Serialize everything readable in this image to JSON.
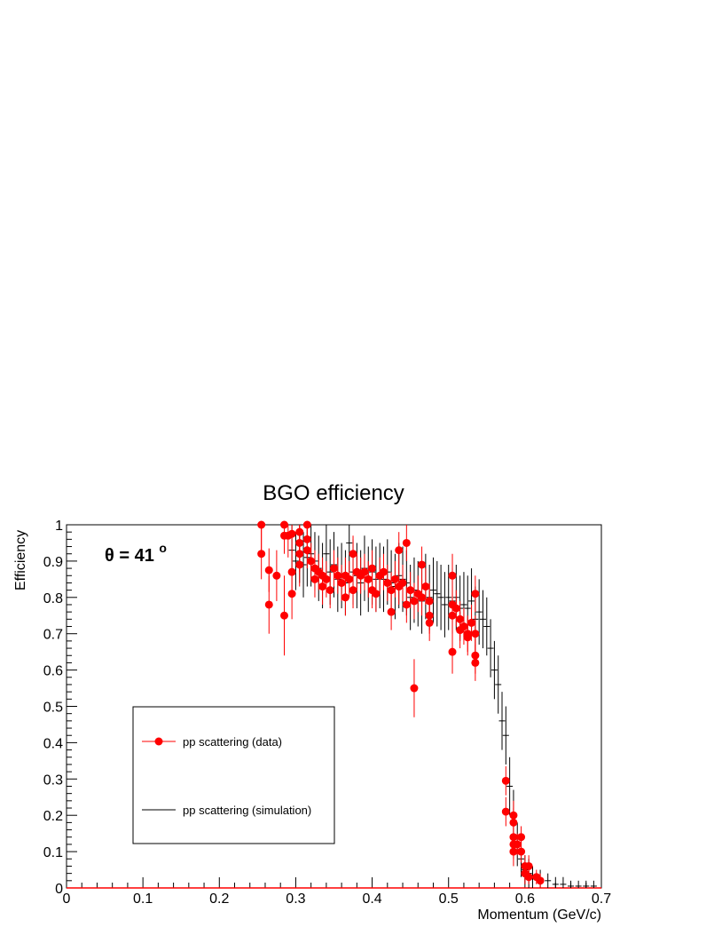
{
  "chart_data": {
    "type": "scatter",
    "title": "BGO efficiency",
    "xlabel": "Momentum (GeV/c)",
    "ylabel": "Efficiency",
    "xlim": [
      0,
      0.7
    ],
    "ylim": [
      0,
      1
    ],
    "x_ticks": [
      "0",
      "0.1",
      "0.2",
      "0.3",
      "0.4",
      "0.5",
      "0.6",
      "0.7"
    ],
    "y_ticks": [
      "0",
      "0.1",
      "0.2",
      "0.3",
      "0.4",
      "0.5",
      "0.6",
      "0.7",
      "0.8",
      "0.9",
      "1"
    ],
    "annotation": {
      "symbol": "θ",
      "text": " = 41 ",
      "superscript": "o"
    },
    "grid": false,
    "legend_placement": "lower-left",
    "series": [
      {
        "name": "pp scattering (data)",
        "color": "#ff0000",
        "marker": "circle",
        "points": [
          [
            0.255,
            1.0,
            0.08
          ],
          [
            0.255,
            0.92,
            0.07
          ],
          [
            0.265,
            0.875,
            0.06
          ],
          [
            0.265,
            0.78,
            0.08
          ],
          [
            0.275,
            0.86,
            0.07
          ],
          [
            0.285,
            1.0,
            0.06
          ],
          [
            0.285,
            0.97,
            0.05
          ],
          [
            0.285,
            0.75,
            0.11
          ],
          [
            0.29,
            0.97,
            0.06
          ],
          [
            0.295,
            0.975,
            0.05
          ],
          [
            0.295,
            0.87,
            0.06
          ],
          [
            0.295,
            0.81,
            0.07
          ],
          [
            0.305,
            0.98,
            0.05
          ],
          [
            0.305,
            0.95,
            0.05
          ],
          [
            0.305,
            0.92,
            0.05
          ],
          [
            0.305,
            0.89,
            0.06
          ],
          [
            0.315,
            1.0,
            0.05
          ],
          [
            0.315,
            0.96,
            0.05
          ],
          [
            0.315,
            0.93,
            0.05
          ],
          [
            0.32,
            0.9,
            0.05
          ],
          [
            0.325,
            0.88,
            0.05
          ],
          [
            0.325,
            0.85,
            0.05
          ],
          [
            0.33,
            0.87,
            0.05
          ],
          [
            0.335,
            0.86,
            0.05
          ],
          [
            0.335,
            0.83,
            0.05
          ],
          [
            0.34,
            0.85,
            0.05
          ],
          [
            0.345,
            0.82,
            0.05
          ],
          [
            0.35,
            0.88,
            0.05
          ],
          [
            0.355,
            0.86,
            0.05
          ],
          [
            0.36,
            0.84,
            0.05
          ],
          [
            0.365,
            0.8,
            0.05
          ],
          [
            0.365,
            0.86,
            0.05
          ],
          [
            0.37,
            0.85,
            0.05
          ],
          [
            0.375,
            0.92,
            0.05
          ],
          [
            0.375,
            0.82,
            0.05
          ],
          [
            0.38,
            0.87,
            0.05
          ],
          [
            0.385,
            0.86,
            0.05
          ],
          [
            0.39,
            0.87,
            0.05
          ],
          [
            0.395,
            0.85,
            0.05
          ],
          [
            0.4,
            0.82,
            0.05
          ],
          [
            0.4,
            0.88,
            0.05
          ],
          [
            0.405,
            0.81,
            0.05
          ],
          [
            0.41,
            0.86,
            0.05
          ],
          [
            0.415,
            0.87,
            0.05
          ],
          [
            0.42,
            0.84,
            0.05
          ],
          [
            0.425,
            0.76,
            0.05
          ],
          [
            0.425,
            0.82,
            0.05
          ],
          [
            0.43,
            0.85,
            0.05
          ],
          [
            0.435,
            0.93,
            0.05
          ],
          [
            0.435,
            0.83,
            0.05
          ],
          [
            0.44,
            0.84,
            0.05
          ],
          [
            0.445,
            0.95,
            0.05
          ],
          [
            0.445,
            0.78,
            0.05
          ],
          [
            0.45,
            0.82,
            0.05
          ],
          [
            0.455,
            0.55,
            0.08
          ],
          [
            0.455,
            0.79,
            0.05
          ],
          [
            0.46,
            0.81,
            0.05
          ],
          [
            0.465,
            0.89,
            0.05
          ],
          [
            0.465,
            0.8,
            0.05
          ],
          [
            0.47,
            0.83,
            0.05
          ],
          [
            0.475,
            0.73,
            0.05
          ],
          [
            0.475,
            0.79,
            0.05
          ],
          [
            0.475,
            0.75,
            0.05
          ],
          [
            0.505,
            0.86,
            0.06
          ],
          [
            0.505,
            0.78,
            0.05
          ],
          [
            0.505,
            0.75,
            0.05
          ],
          [
            0.505,
            0.65,
            0.06
          ],
          [
            0.51,
            0.77,
            0.05
          ],
          [
            0.515,
            0.74,
            0.05
          ],
          [
            0.515,
            0.71,
            0.05
          ],
          [
            0.52,
            0.72,
            0.05
          ],
          [
            0.525,
            0.69,
            0.05
          ],
          [
            0.525,
            0.7,
            0.05
          ],
          [
            0.53,
            0.73,
            0.05
          ],
          [
            0.535,
            0.81,
            0.05
          ],
          [
            0.535,
            0.7,
            0.05
          ],
          [
            0.535,
            0.64,
            0.05
          ],
          [
            0.535,
            0.62,
            0.05
          ],
          [
            0.575,
            0.295,
            0.04
          ],
          [
            0.575,
            0.21,
            0.04
          ],
          [
            0.585,
            0.2,
            0.04
          ],
          [
            0.585,
            0.18,
            0.04
          ],
          [
            0.585,
            0.14,
            0.04
          ],
          [
            0.585,
            0.12,
            0.04
          ],
          [
            0.585,
            0.1,
            0.04
          ],
          [
            0.59,
            0.12,
            0.03
          ],
          [
            0.595,
            0.14,
            0.03
          ],
          [
            0.595,
            0.1,
            0.03
          ],
          [
            0.6,
            0.06,
            0.03
          ],
          [
            0.6,
            0.04,
            0.03
          ],
          [
            0.605,
            0.06,
            0.03
          ],
          [
            0.605,
            0.03,
            0.02
          ],
          [
            0.615,
            0.03,
            0.02
          ],
          [
            0.62,
            0.02,
            0.02
          ]
        ]
      },
      {
        "name": "pp scattering (simulation)",
        "color": "#000000",
        "marker": "cross",
        "points": [
          [
            0.295,
            0.93,
            0.07
          ],
          [
            0.3,
            0.9,
            0.08
          ],
          [
            0.305,
            0.92,
            0.08
          ],
          [
            0.31,
            0.89,
            0.09
          ],
          [
            0.315,
            0.91,
            0.08
          ],
          [
            0.32,
            0.92,
            0.09
          ],
          [
            0.325,
            0.9,
            0.08
          ],
          [
            0.33,
            0.88,
            0.09
          ],
          [
            0.335,
            0.86,
            0.09
          ],
          [
            0.34,
            0.92,
            0.08
          ],
          [
            0.345,
            0.87,
            0.09
          ],
          [
            0.35,
            0.89,
            0.09
          ],
          [
            0.355,
            0.85,
            0.09
          ],
          [
            0.36,
            0.86,
            0.09
          ],
          [
            0.365,
            0.84,
            0.09
          ],
          [
            0.37,
            0.95,
            0.08
          ],
          [
            0.375,
            0.87,
            0.09
          ],
          [
            0.38,
            0.86,
            0.09
          ],
          [
            0.385,
            0.84,
            0.09
          ],
          [
            0.39,
            0.88,
            0.09
          ],
          [
            0.395,
            0.85,
            0.09
          ],
          [
            0.4,
            0.87,
            0.09
          ],
          [
            0.405,
            0.85,
            0.09
          ],
          [
            0.41,
            0.86,
            0.09
          ],
          [
            0.415,
            0.85,
            0.09
          ],
          [
            0.42,
            0.87,
            0.09
          ],
          [
            0.425,
            0.84,
            0.09
          ],
          [
            0.43,
            0.83,
            0.09
          ],
          [
            0.435,
            0.86,
            0.09
          ],
          [
            0.44,
            0.85,
            0.09
          ],
          [
            0.445,
            0.84,
            0.09
          ],
          [
            0.45,
            0.8,
            0.09
          ],
          [
            0.455,
            0.82,
            0.09
          ],
          [
            0.46,
            0.81,
            0.09
          ],
          [
            0.465,
            0.79,
            0.09
          ],
          [
            0.47,
            0.83,
            0.09
          ],
          [
            0.475,
            0.8,
            0.09
          ],
          [
            0.48,
            0.82,
            0.09
          ],
          [
            0.485,
            0.81,
            0.09
          ],
          [
            0.49,
            0.8,
            0.09
          ],
          [
            0.495,
            0.78,
            0.09
          ],
          [
            0.5,
            0.8,
            0.09
          ],
          [
            0.505,
            0.79,
            0.09
          ],
          [
            0.51,
            0.8,
            0.09
          ],
          [
            0.515,
            0.77,
            0.09
          ],
          [
            0.52,
            0.78,
            0.09
          ],
          [
            0.525,
            0.77,
            0.09
          ],
          [
            0.53,
            0.79,
            0.09
          ],
          [
            0.535,
            0.74,
            0.09
          ],
          [
            0.54,
            0.76,
            0.09
          ],
          [
            0.545,
            0.74,
            0.08
          ],
          [
            0.55,
            0.72,
            0.08
          ],
          [
            0.555,
            0.66,
            0.08
          ],
          [
            0.56,
            0.6,
            0.08
          ],
          [
            0.565,
            0.56,
            0.08
          ],
          [
            0.57,
            0.46,
            0.08
          ],
          [
            0.575,
            0.42,
            0.08
          ],
          [
            0.58,
            0.28,
            0.08
          ],
          [
            0.585,
            0.2,
            0.07
          ],
          [
            0.59,
            0.12,
            0.06
          ],
          [
            0.595,
            0.08,
            0.05
          ],
          [
            0.6,
            0.05,
            0.04
          ],
          [
            0.605,
            0.04,
            0.04
          ],
          [
            0.61,
            0.03,
            0.03
          ],
          [
            0.62,
            0.02,
            0.03
          ],
          [
            0.63,
            0.02,
            0.02
          ],
          [
            0.64,
            0.01,
            0.02
          ],
          [
            0.65,
            0.01,
            0.02
          ],
          [
            0.66,
            0.005,
            0.015
          ],
          [
            0.67,
            0.005,
            0.015
          ],
          [
            0.68,
            0.005,
            0.015
          ],
          [
            0.69,
            0.005,
            0.015
          ]
        ]
      }
    ]
  }
}
